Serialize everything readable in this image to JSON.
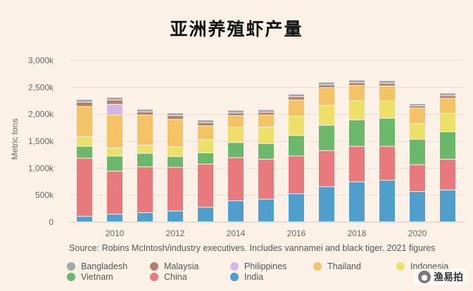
{
  "title": "亚洲养殖虾产量",
  "source": "Source: Robins McIntosh/industry executives. Includes vannamei and black tiger. 2021 figures",
  "watermark": {
    "text": "渔易拍",
    "icon": "wechat-icon"
  },
  "chart_data": {
    "type": "bar",
    "stacked": true,
    "title": "亚洲养殖虾产量",
    "ylabel": "Metric tons",
    "xlabel": "",
    "ylim": [
      0,
      3000000
    ],
    "yticks": [
      0,
      500000,
      1000000,
      1500000,
      2000000,
      2500000,
      3000000
    ],
    "ytick_labels": [
      "0",
      "500k",
      "1,000k",
      "1,500k",
      "2,000k",
      "2,500k",
      "3,000k"
    ],
    "x_tick_labels": [
      "2010",
      "2012",
      "2014",
      "2016",
      "2018",
      "2020"
    ],
    "x_tick_years": [
      2010,
      2012,
      2014,
      2016,
      2018,
      2020
    ],
    "categories": [
      2009,
      2010,
      2011,
      2012,
      2013,
      2014,
      2015,
      2016,
      2017,
      2018,
      2019,
      2020,
      2021
    ],
    "grid": true,
    "legend_position": "bottom",
    "series": [
      {
        "name": "India",
        "color": "#4e9fcc",
        "values": [
          100000,
          140000,
          170000,
          200000,
          270000,
          390000,
          420000,
          520000,
          650000,
          740000,
          770000,
          560000,
          590000
        ]
      },
      {
        "name": "China",
        "color": "#e8797d",
        "values": [
          1080000,
          800000,
          850000,
          810000,
          800000,
          800000,
          740000,
          700000,
          670000,
          660000,
          630000,
          500000,
          570000
        ]
      },
      {
        "name": "Vietnam",
        "color": "#6cb86a",
        "values": [
          220000,
          280000,
          250000,
          200000,
          210000,
          280000,
          290000,
          380000,
          470000,
          490000,
          520000,
          470000,
          510000
        ]
      },
      {
        "name": "Indonesia",
        "color": "#ece068",
        "values": [
          180000,
          150000,
          150000,
          180000,
          240000,
          280000,
          310000,
          360000,
          370000,
          360000,
          320000,
          290000,
          340000
        ]
      },
      {
        "name": "Thailand",
        "color": "#f4c366",
        "values": [
          560000,
          610000,
          560000,
          510000,
          260000,
          220000,
          220000,
          300000,
          330000,
          280000,
          280000,
          290000,
          280000
        ]
      },
      {
        "name": "Philippines",
        "color": "#d6b7e3",
        "values": [
          0,
          200000,
          0,
          0,
          0,
          0,
          0,
          0,
          0,
          0,
          0,
          0,
          0
        ]
      },
      {
        "name": "Malaysia",
        "color": "#b3806a",
        "values": [
          80000,
          80000,
          60000,
          70000,
          60000,
          50000,
          50000,
          60000,
          50000,
          50000,
          50000,
          40000,
          50000
        ]
      },
      {
        "name": "Bangladesh",
        "color": "#9fa9ad",
        "values": [
          50000,
          50000,
          50000,
          50000,
          50000,
          50000,
          50000,
          50000,
          50000,
          50000,
          50000,
          40000,
          50000
        ]
      }
    ],
    "legend": [
      {
        "name": "Bangladesh",
        "color": "#9fa9ad"
      },
      {
        "name": "Malaysia",
        "color": "#b3806a"
      },
      {
        "name": "Philippines",
        "color": "#d6b7e3"
      },
      {
        "name": "Thailand",
        "color": "#f4c366"
      },
      {
        "name": "Indonesia",
        "color": "#ece068"
      },
      {
        "name": "Vietnam",
        "color": "#6cb86a"
      },
      {
        "name": "China",
        "color": "#e8797d"
      },
      {
        "name": "India",
        "color": "#4e9fcc"
      }
    ]
  }
}
